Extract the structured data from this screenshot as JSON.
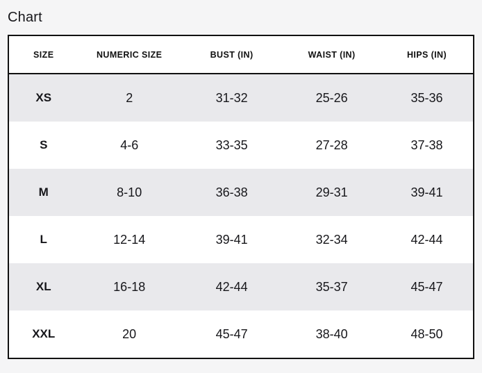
{
  "page": {
    "title": "Chart"
  },
  "colors": {
    "page_background": "#f5f5f6",
    "table_border": "#111111",
    "stripe_row": "#e9e9ec",
    "text": "#16161a"
  },
  "chart_data": {
    "type": "table",
    "title": "Chart",
    "columns": [
      "SIZE",
      "NUMERIC SIZE",
      "BUST (IN)",
      "WAIST (IN)",
      "HIPS (IN)"
    ],
    "rows": [
      {
        "size": "XS",
        "numeric_size": "2",
        "bust_in": "31-32",
        "waist_in": "25-26",
        "hips_in": "35-36"
      },
      {
        "size": "S",
        "numeric_size": "4-6",
        "bust_in": "33-35",
        "waist_in": "27-28",
        "hips_in": "37-38"
      },
      {
        "size": "M",
        "numeric_size": "8-10",
        "bust_in": "36-38",
        "waist_in": "29-31",
        "hips_in": "39-41"
      },
      {
        "size": "L",
        "numeric_size": "12-14",
        "bust_in": "39-41",
        "waist_in": "32-34",
        "hips_in": "42-44"
      },
      {
        "size": "XL",
        "numeric_size": "16-18",
        "bust_in": "42-44",
        "waist_in": "35-37",
        "hips_in": "45-47"
      },
      {
        "size": "XXL",
        "numeric_size": "20",
        "bust_in": "45-47",
        "waist_in": "38-40",
        "hips_in": "48-50"
      }
    ],
    "layout": {
      "striped": true,
      "stripe_pattern": "odd rows shaded",
      "header_position": "top",
      "cell_alignment": "center"
    }
  }
}
